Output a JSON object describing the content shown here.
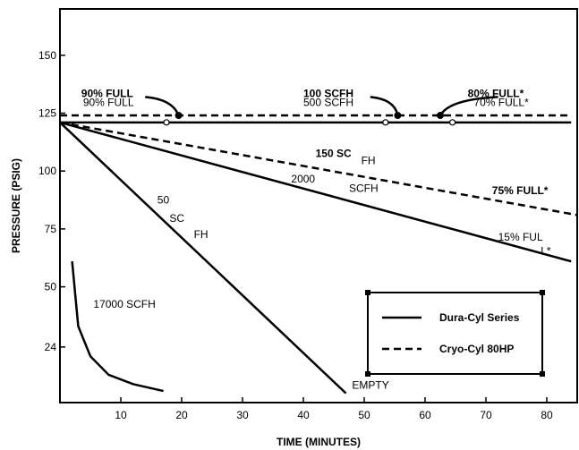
{
  "chart_data": {
    "type": "line",
    "xlabel": "TIME (MINUTES)",
    "ylabel": "PRESSURE (PSIG)",
    "xlim": [
      0,
      85
    ],
    "ylim": [
      0,
      170
    ],
    "x_ticks": [
      "10",
      "20",
      "30",
      "40",
      "50",
      "60",
      "70",
      "80"
    ],
    "y_ticks": [
      "150",
      "125",
      "100",
      "75",
      "50",
      "24"
    ],
    "grid": false,
    "legend_position": "bottom-right",
    "series": [
      {
        "name": "Dura-Cyl Series",
        "style": "solid"
      },
      {
        "name": "Cryo-Cyl 80HP",
        "style": "dashed"
      }
    ],
    "lines": [
      {
        "series": "Dura-Cyl Series",
        "x": [
          0,
          84
        ],
        "y": [
          121,
          121
        ]
      },
      {
        "series": "Cryo-Cyl 80HP",
        "x": [
          0,
          84
        ],
        "y": [
          124,
          124
        ]
      },
      {
        "series": "Dura-Cyl Series",
        "x": [
          0,
          84
        ],
        "y": [
          121,
          61
        ]
      },
      {
        "series": "Cryo-Cyl 80HP",
        "x": [
          0,
          85
        ],
        "y": [
          121,
          81
        ]
      },
      {
        "series": "Dura-Cyl Series",
        "x": [
          0,
          47
        ],
        "y": [
          121,
          4
        ]
      },
      {
        "series": "Dura-Cyl Series",
        "x": [
          2,
          3,
          5,
          8,
          12,
          17
        ],
        "y": [
          61,
          33,
          20,
          12,
          8,
          5
        ]
      }
    ],
    "annotations": [
      {
        "text": "90% FULL",
        "x": 3.5,
        "y": 132,
        "bold": true
      },
      {
        "text": "90% FULL",
        "x": 3.8,
        "y": 128,
        "bold": false
      },
      {
        "text": "100 SCFH",
        "x": 40,
        "y": 132,
        "bold": true
      },
      {
        "text": "500 SCFH",
        "x": 40,
        "y": 128,
        "bold": false
      },
      {
        "text": "80% FULL*",
        "x": 67,
        "y": 132,
        "bold": true
      },
      {
        "text": "70% FULL*",
        "x": 68,
        "y": 128,
        "bold": false
      },
      {
        "text": "150  SC",
        "x": 42,
        "y": 106,
        "bold": true
      },
      {
        "text": "FH",
        "x": 49.5,
        "y": 103,
        "bold": false
      },
      {
        "text": "2000",
        "x": 38,
        "y": 95,
        "bold": false
      },
      {
        "text": "SCFH",
        "x": 47.5,
        "y": 91,
        "bold": false
      },
      {
        "text": "75%  FULL*",
        "x": 71,
        "y": 90,
        "bold": true
      },
      {
        "text": "15%  FUL",
        "x": 72,
        "y": 70,
        "bold": false
      },
      {
        "text": "L*",
        "x": 79,
        "y": 64,
        "bold": false
      },
      {
        "text": "50",
        "x": 16,
        "y": 86,
        "bold": false
      },
      {
        "text": "SC",
        "x": 18,
        "y": 78,
        "bold": false
      },
      {
        "text": "FH",
        "x": 22,
        "y": 71,
        "bold": false
      },
      {
        "text": "17000 SCFH",
        "x": 5.5,
        "y": 41,
        "bold": false
      },
      {
        "text": "EMPTY",
        "x": 48,
        "y": 6,
        "bold": false
      }
    ],
    "callouts": [
      {
        "from": [
          14,
          132
        ],
        "via": [
          18.5,
          131
        ],
        "to": [
          19.5,
          124
        ]
      },
      {
        "from": [
          51,
          132
        ],
        "via": [
          55,
          131
        ],
        "to": [
          55.5,
          124
        ]
      },
      {
        "from": [
          72,
          132
        ],
        "via": [
          64,
          131
        ],
        "to": [
          62.5,
          124
        ]
      }
    ],
    "small_circles": [
      {
        "x": 17.5,
        "y": 121
      },
      {
        "x": 53.5,
        "y": 121
      },
      {
        "x": 64.5,
        "y": 121
      }
    ]
  }
}
